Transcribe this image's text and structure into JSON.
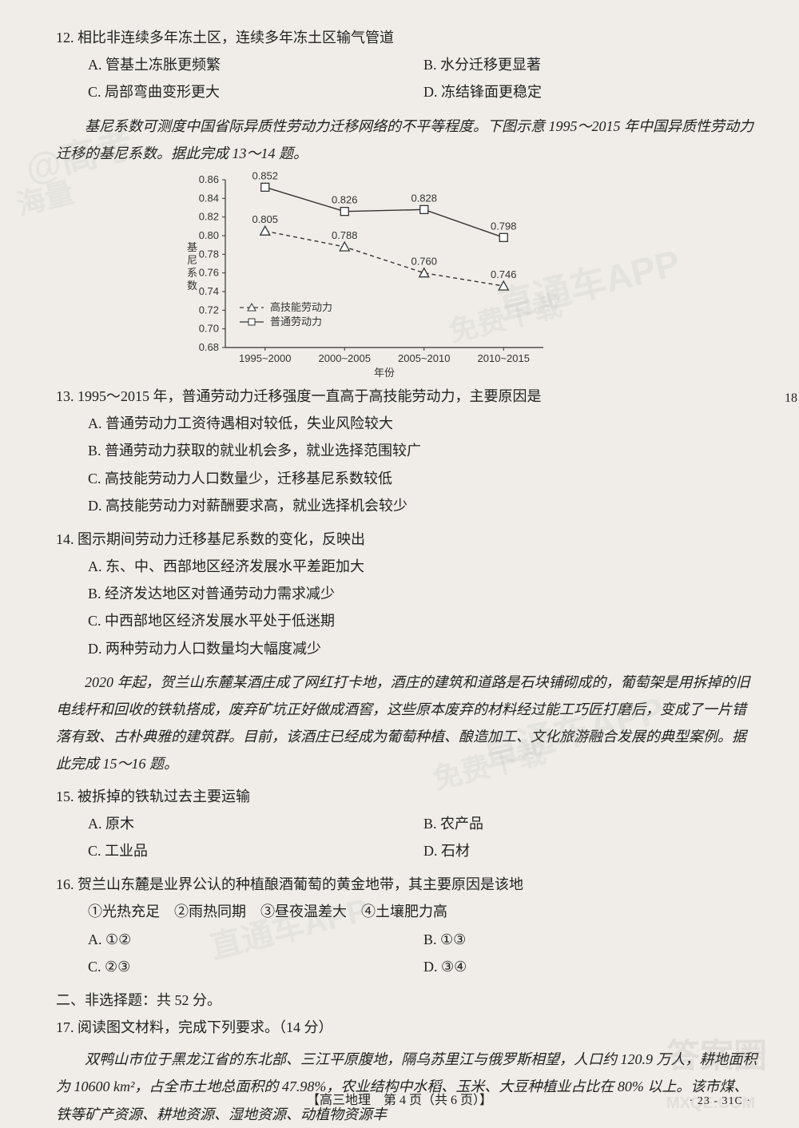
{
  "q12": {
    "stem": "12. 相比非连续多年冻土区，连续多年冻土区输气管道",
    "optA": "A. 管基土冻胀更频繁",
    "optB": "B. 水分迁移更显著",
    "optC": "C. 局部弯曲变形更大",
    "optD": "D. 冻结锋面更稳定"
  },
  "passage1": "基尼系数可测度中国省际异质性劳动力迁移网络的不平等程度。下图示意 1995～2015 年中国异质性劳动力迁移的基尼系数。据此完成 13～14 题。",
  "chart": {
    "type": "line",
    "periods": [
      "1995~2000",
      "2000~2005",
      "2005~2010",
      "2010~2015"
    ],
    "xaxis_label": "年份",
    "yaxis_label": "基尼系数",
    "yticks": [
      0.68,
      0.7,
      0.72,
      0.74,
      0.76,
      0.78,
      0.8,
      0.82,
      0.84,
      0.86
    ],
    "ylim": [
      0.68,
      0.86
    ],
    "series": [
      {
        "name": "高技能劳动力",
        "marker": "triangle",
        "linestyle": "dashed",
        "color": "#333333",
        "values": [
          0.805,
          0.788,
          0.76,
          0.746
        ],
        "labels": [
          "0.805",
          "0.788",
          "0.760",
          "0.746"
        ]
      },
      {
        "name": "普通劳动力",
        "marker": "square",
        "linestyle": "solid",
        "color": "#333333",
        "values": [
          0.852,
          0.826,
          0.828,
          0.798
        ],
        "labels": [
          "0.852",
          "0.826",
          "0.828",
          "0.798"
        ]
      }
    ],
    "legend": {
      "items": [
        {
          "marker": "triangle",
          "style": "dashed",
          "label": "高技能劳动力"
        },
        {
          "marker": "square",
          "style": "solid",
          "label": "普通劳动力"
        }
      ]
    },
    "background": "#f0ede8",
    "axis_color": "#333333",
    "font_size": 13
  },
  "q13": {
    "stem": "13. 1995～2015 年，普通劳动力迁移强度一直高于高技能劳动力，主要原因是",
    "optA": "A. 普通劳动力工资待遇相对较低，失业风险较大",
    "optB": "B. 普通劳动力获取的就业机会多，就业选择范围较广",
    "optC": "C. 高技能劳动力人口数量少，迁移基尼系数较低",
    "optD": "D. 高技能劳动力对薪酬要求高，就业选择机会较少"
  },
  "q14": {
    "stem": "14. 图示期间劳动力迁移基尼系数的变化，反映出",
    "optA": "A. 东、中、西部地区经济发展水平差距加大",
    "optB": "B. 经济发达地区对普通劳动力需求减少",
    "optC": "C. 中西部地区经济发展水平处于低迷期",
    "optD": "D. 两种劳动力人口数量均大幅度减少"
  },
  "passage2": "2020 年起，贺兰山东麓某酒庄成了网红打卡地，酒庄的建筑和道路是石块铺砌成的，葡萄架是用拆掉的旧电线杆和回收的铁轨搭成，废弃矿坑正好做成酒窖，这些原本废弃的材料经过能工巧匠打磨后，变成了一片错落有致、古朴典雅的建筑群。目前，该酒庄已经成为葡萄种植、酿造加工、文化旅游融合发展的典型案例。据此完成 15～16 题。",
  "q15": {
    "stem": "15. 被拆掉的铁轨过去主要运输",
    "optA": "A. 原木",
    "optB": "B. 农产品",
    "optC": "C. 工业品",
    "optD": "D. 石材"
  },
  "q16": {
    "stem": "16. 贺兰山东麓是业界公认的种植酿酒葡萄的黄金地带，其主要原因是该地",
    "choices": "①光热充足　②雨热同期　③昼夜温差大　④土壤肥力高",
    "optA": "A. ①②",
    "optB": "B. ①③",
    "optC": "C. ②③",
    "optD": "D. ③④"
  },
  "section2": "二、非选择题：共 52 分。",
  "q17": {
    "stem": "17. 阅读图文材料，完成下列要求。（14 分）",
    "body": "双鸭山市位于黑龙江省的东北部、三江平原腹地，隔乌苏里江与俄罗斯相望，人口约 120.9 万人，耕地面积为 10600 km²，占全市土地总面积的 47.98%，农业结构中水稻、玉米、大豆种植业占比在 80% 以上。该市煤、铁等矿产资源、耕地资源、湿地资源、动植物资源丰"
  },
  "footer": "【高三地理　第 4 页（共 6 页）】",
  "footer_code": "· 23 - 31C ·",
  "side_mark": "18",
  "watermarks": {
    "wm1": "@高考",
    "wm2": "直通车APP",
    "wm3": "免费下载",
    "wm4": "海量",
    "wm5": "答案圈",
    "wm6": "MXQE.COM"
  }
}
